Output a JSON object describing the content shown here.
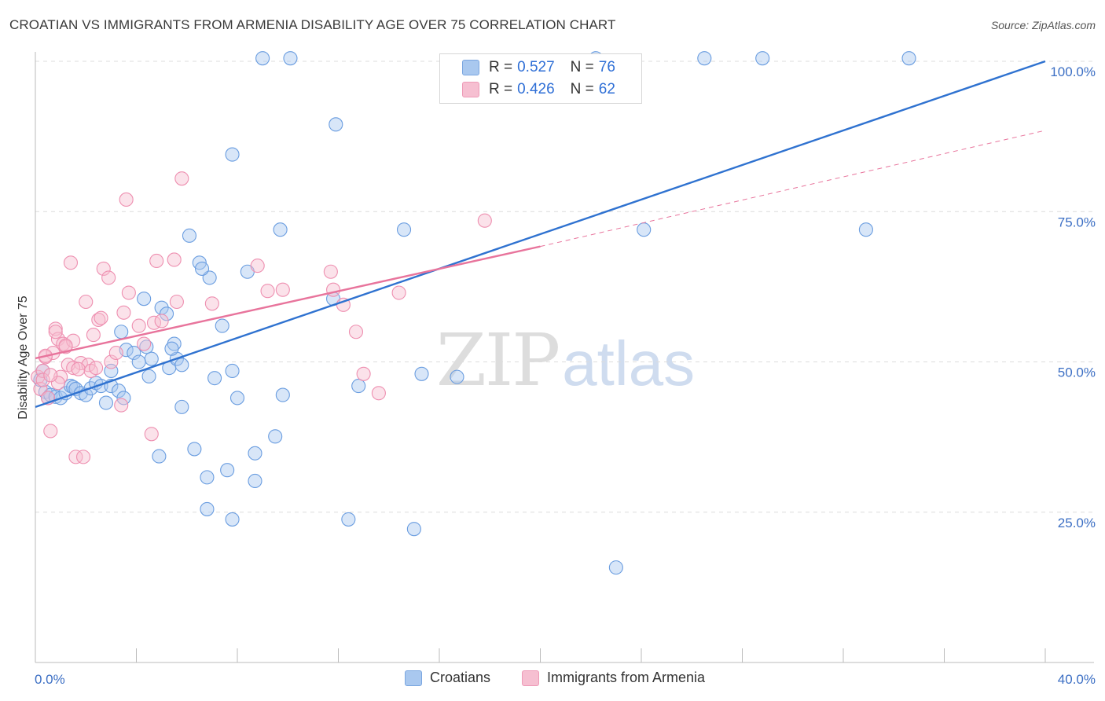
{
  "title": "CROATIAN VS IMMIGRANTS FROM ARMENIA DISABILITY AGE OVER 75 CORRELATION CHART",
  "source": "Source: ZipAtlas.com",
  "watermark": {
    "zip": "ZIP",
    "atlas": "atlas"
  },
  "legend": {
    "r_label": "R =",
    "n_label": "N =",
    "rows": [
      {
        "r": "0.527",
        "n": "76",
        "color": "#a9c8ef",
        "border": "#7aa6e0"
      },
      {
        "r": "0.426",
        "n": "62",
        "color": "#f6bfd1",
        "border": "#ee9ab7"
      }
    ]
  },
  "bottom_legend": [
    {
      "label": "Croatians",
      "color": "#a9c8ef",
      "border": "#7aa6e0"
    },
    {
      "label": "Immigrants from Armenia",
      "color": "#f6bfd1",
      "border": "#ee9ab7"
    }
  ],
  "chart_data": {
    "type": "scatter",
    "title": "CROATIAN VS IMMIGRANTS FROM ARMENIA DISABILITY AGE OVER 75 CORRELATION CHART",
    "xlabel": "",
    "ylabel": "Disability Age Over 75",
    "xlim": [
      0,
      40
    ],
    "ylim": [
      0,
      100
    ],
    "x_tick_labels": [
      "0.0%",
      "40.0%"
    ],
    "y_ticks": [
      {
        "value": 25,
        "label": "25.0%"
      },
      {
        "value": 50,
        "label": "50.0%"
      },
      {
        "value": 75,
        "label": "75.0%"
      },
      {
        "value": 100,
        "label": "100.0%"
      }
    ],
    "grid": "horizontal dashed",
    "legend_position": "top-center",
    "series": [
      {
        "name": "Croatians",
        "color": "#6a9de0",
        "fill": "#a9c8ef",
        "trend": {
          "x0": 0,
          "y0": 42.5,
          "x1": 40,
          "y1": 100.0,
          "color": "#2f72d0"
        },
        "points": [
          [
            0.2,
            47.0
          ],
          [
            0.3,
            48.5
          ],
          [
            0.4,
            45.0
          ],
          [
            0.5,
            44.0
          ],
          [
            0.6,
            44.5
          ],
          [
            0.8,
            44.2
          ],
          [
            1.0,
            44.0
          ],
          [
            1.2,
            44.8
          ],
          [
            1.4,
            46.0
          ],
          [
            1.5,
            45.8
          ],
          [
            1.6,
            45.5
          ],
          [
            1.8,
            44.8
          ],
          [
            2.0,
            44.5
          ],
          [
            2.2,
            45.6
          ],
          [
            2.4,
            46.5
          ],
          [
            2.6,
            46.0
          ],
          [
            2.8,
            43.2
          ],
          [
            3.0,
            46.0
          ],
          [
            3.3,
            45.2
          ],
          [
            3.5,
            44.0
          ],
          [
            3.6,
            52.0
          ],
          [
            3.9,
            51.5
          ],
          [
            4.3,
            60.5
          ],
          [
            4.6,
            50.5
          ],
          [
            5.0,
            59.0
          ],
          [
            5.3,
            49.0
          ],
          [
            5.5,
            53.0
          ],
          [
            5.6,
            50.5
          ],
          [
            5.8,
            42.5
          ],
          [
            6.1,
            71.0
          ],
          [
            6.5,
            66.5
          ],
          [
            6.9,
            64.0
          ],
          [
            7.4,
            56.0
          ],
          [
            7.8,
            84.5
          ],
          [
            8.0,
            44.0
          ],
          [
            8.4,
            65.0
          ],
          [
            8.7,
            34.8
          ],
          [
            9.0,
            100.5
          ],
          [
            9.5,
            37.6
          ],
          [
            9.7,
            72.0
          ],
          [
            9.8,
            44.5
          ],
          [
            10.1,
            100.5
          ],
          [
            11.8,
            60.5
          ],
          [
            11.9,
            89.5
          ],
          [
            12.4,
            23.8
          ],
          [
            12.8,
            46.0
          ],
          [
            14.6,
            72.0
          ],
          [
            15.0,
            22.2
          ],
          [
            15.3,
            48.0
          ],
          [
            16.7,
            47.5
          ],
          [
            23.0,
            15.8
          ],
          [
            24.1,
            72.0
          ],
          [
            26.5,
            100.5
          ],
          [
            28.8,
            100.5
          ],
          [
            32.9,
            72.0
          ],
          [
            34.6,
            100.5
          ],
          [
            22.0,
            95.5
          ],
          [
            22.2,
            100.5
          ],
          [
            4.5,
            47.6
          ],
          [
            5.8,
            49.5
          ],
          [
            6.8,
            30.8
          ],
          [
            7.1,
            47.3
          ],
          [
            7.8,
            48.5
          ],
          [
            8.7,
            30.2
          ],
          [
            7.6,
            32.0
          ],
          [
            3.0,
            48.5
          ],
          [
            4.4,
            52.5
          ],
          [
            6.3,
            35.5
          ],
          [
            4.9,
            34.3
          ],
          [
            5.4,
            52.2
          ],
          [
            6.8,
            25.5
          ],
          [
            7.8,
            23.8
          ],
          [
            6.6,
            65.5
          ],
          [
            5.2,
            58.0
          ],
          [
            3.4,
            55.0
          ],
          [
            4.1,
            50.0
          ]
        ]
      },
      {
        "name": "Immigrants from Armenia",
        "color": "#ee8fb0",
        "fill": "#f6bfd1",
        "trend": {
          "x0": 0,
          "y0": 50.6,
          "x1": 20,
          "y1": 69.2,
          "x2": 40,
          "y2": 88.5,
          "color": "#e8749c"
        },
        "points": [
          [
            0.1,
            47.5
          ],
          [
            0.2,
            45.5
          ],
          [
            0.3,
            48.5
          ],
          [
            0.4,
            50.8
          ],
          [
            0.5,
            44.0
          ],
          [
            0.6,
            38.5
          ],
          [
            0.7,
            51.5
          ],
          [
            0.8,
            55.5
          ],
          [
            0.9,
            53.8
          ],
          [
            1.0,
            47.5
          ],
          [
            1.1,
            53.0
          ],
          [
            1.2,
            52.5
          ],
          [
            1.3,
            49.5
          ],
          [
            1.4,
            66.5
          ],
          [
            1.5,
            53.5
          ],
          [
            1.6,
            34.2
          ],
          [
            1.8,
            49.8
          ],
          [
            1.9,
            34.2
          ],
          [
            2.0,
            60.0
          ],
          [
            2.1,
            49.5
          ],
          [
            2.3,
            54.5
          ],
          [
            2.5,
            57.0
          ],
          [
            2.6,
            57.3
          ],
          [
            2.7,
            65.5
          ],
          [
            2.9,
            64.0
          ],
          [
            3.0,
            50.0
          ],
          [
            3.2,
            51.5
          ],
          [
            3.4,
            42.8
          ],
          [
            3.5,
            58.2
          ],
          [
            3.6,
            77.0
          ],
          [
            3.7,
            61.5
          ],
          [
            4.1,
            56.0
          ],
          [
            4.3,
            53.0
          ],
          [
            4.6,
            38.0
          ],
          [
            4.7,
            56.5
          ],
          [
            4.8,
            66.8
          ],
          [
            5.0,
            56.8
          ],
          [
            5.5,
            67.0
          ],
          [
            5.6,
            60.0
          ],
          [
            5.8,
            80.5
          ],
          [
            7.0,
            59.7
          ],
          [
            8.8,
            66.0
          ],
          [
            9.2,
            61.8
          ],
          [
            9.8,
            62.0
          ],
          [
            11.7,
            65.0
          ],
          [
            11.8,
            62.0
          ],
          [
            12.2,
            59.5
          ],
          [
            12.7,
            55.0
          ],
          [
            13.0,
            48.0
          ],
          [
            13.6,
            44.8
          ],
          [
            14.4,
            61.5
          ],
          [
            17.8,
            73.5
          ],
          [
            0.3,
            47.0
          ],
          [
            0.9,
            46.5
          ],
          [
            1.5,
            49.0
          ],
          [
            1.7,
            48.8
          ],
          [
            2.2,
            48.5
          ],
          [
            0.4,
            51.0
          ],
          [
            0.6,
            47.8
          ],
          [
            2.4,
            49.0
          ],
          [
            1.2,
            52.7
          ],
          [
            0.8,
            55.0
          ]
        ]
      }
    ]
  }
}
